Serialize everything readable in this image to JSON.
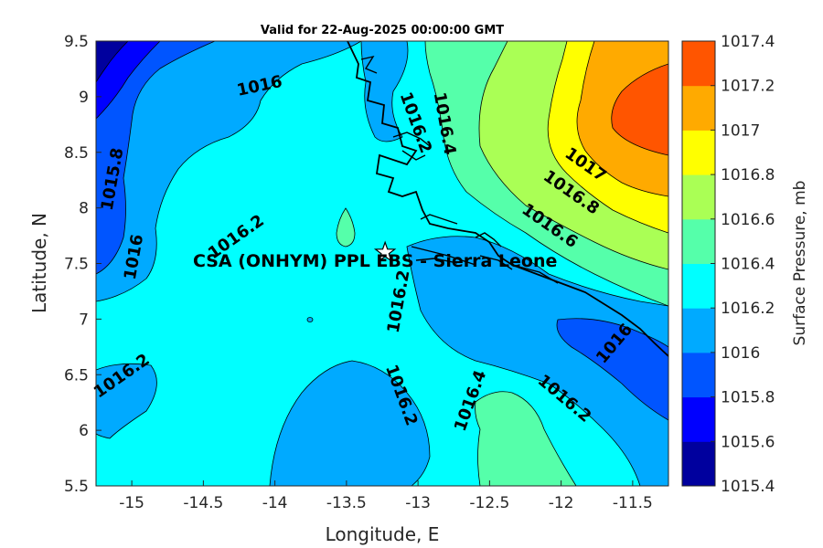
{
  "title": "Valid for 22-Aug-2025 00:00:00 GMT",
  "map": {
    "xlabel": "Longitude, E",
    "ylabel": "Latitude, N",
    "xlim": [
      -15.25,
      -11.25
    ],
    "ylim": [
      5.5,
      9.5
    ],
    "xticks": [
      "-15",
      "-14.5",
      "-14",
      "-13.5",
      "-13",
      "-12.5",
      "-12",
      "-11.5"
    ],
    "yticks": [
      "5.5",
      "6",
      "6.5",
      "7",
      "7.5",
      "8",
      "8.5",
      "9",
      "9.5"
    ],
    "site_marker": "white-star",
    "site_label": "CSA (ONHYM) PPL EBS  - Sierra Leone"
  },
  "contour_labels": [
    {
      "text": "1016",
      "lon": -14.1,
      "lat": 9.05
    },
    {
      "text": "1016.2",
      "lon": -13.05,
      "lat": 8.75
    },
    {
      "text": "1016.4",
      "lon": -12.85,
      "lat": 8.75
    },
    {
      "text": "1015.8",
      "lon": -15.1,
      "lat": 8.25
    },
    {
      "text": "1017",
      "lon": -11.85,
      "lat": 8.35
    },
    {
      "text": "1016.8",
      "lon": -11.95,
      "lat": 8.1
    },
    {
      "text": "1016.6",
      "lon": -12.1,
      "lat": 7.8
    },
    {
      "text": "1016.2",
      "lon": -14.25,
      "lat": 7.7
    },
    {
      "text": "1016",
      "lon": -14.95,
      "lat": 7.55
    },
    {
      "text": "1016.2",
      "lon": -13.1,
      "lat": 7.15
    },
    {
      "text": "1016.2",
      "lon": -15.05,
      "lat": 6.45
    },
    {
      "text": "1016.2",
      "lon": -13.15,
      "lat": 6.3
    },
    {
      "text": "1016.4",
      "lon": -12.6,
      "lat": 6.25
    },
    {
      "text": "1016.2",
      "lon": -12.0,
      "lat": 6.25
    },
    {
      "text": "1016",
      "lon": -11.6,
      "lat": 6.75
    }
  ],
  "colorbar": {
    "label": "Surface Pressure, mb",
    "levels": [
      {
        "value": "1015.4",
        "color": "#00009e"
      },
      {
        "value": "1015.6",
        "color": "#0000ff"
      },
      {
        "value": "1015.8",
        "color": "#0055ff"
      },
      {
        "value": "1016",
        "color": "#00aaff"
      },
      {
        "value": "1016.2",
        "color": "#00ffff"
      },
      {
        "value": "1016.4",
        "color": "#55ffaa"
      },
      {
        "value": "1016.6",
        "color": "#aaff55"
      },
      {
        "value": "1016.8",
        "color": "#ffff00"
      },
      {
        "value": "1017",
        "color": "#ffaa00"
      },
      {
        "value": "1017.2",
        "color": "#ff5500"
      },
      {
        "value": "1017.4",
        "color": "#ff0000"
      }
    ]
  }
}
